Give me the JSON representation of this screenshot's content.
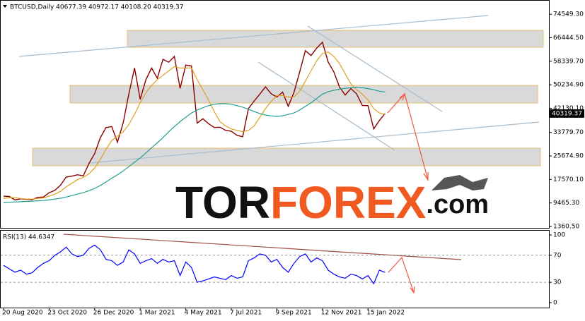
{
  "header": "BTCUSD,Daily  40677.39 40972.17 40108.20 40319.37",
  "watermark": [
    "TOR",
    "FOREX",
    ".com"
  ],
  "chart_data": [
    {
      "type": "line",
      "ylim": [
        869,
        79215
      ],
      "yticks": [
        {
          "value": 74549.3,
          "label": "74549.30"
        },
        {
          "value": 66444.5,
          "label": "66444.50"
        },
        {
          "value": 58339.7,
          "label": "58339.70"
        },
        {
          "value": 50234.9,
          "label": "50234.90"
        },
        {
          "value": 42130.1,
          "label": "42130.10"
        },
        {
          "value": 33779.7,
          "label": "33779.70"
        },
        {
          "value": 25674.9,
          "label": "25674.90"
        },
        {
          "value": 17570.1,
          "label": "17570.10"
        },
        {
          "value": 9465.3,
          "label": "9465.30"
        },
        {
          "value": 1360.5,
          "label": "1360.50"
        }
      ],
      "price_label": "40319.37",
      "series": [
        {
          "color": "#8b0000",
          "values": [
            11800,
            11700,
            10500,
            10900,
            10700,
            10600,
            11400,
            11500,
            13000,
            13800,
            15600,
            18400,
            18700,
            19200,
            18800,
            23100,
            26500,
            32000,
            35500,
            35800,
            30400,
            37000,
            47000,
            56000,
            45200,
            52000,
            56000,
            52500,
            59000,
            58000,
            60000,
            49000,
            57000,
            56700,
            37000,
            38500,
            36800,
            35500,
            35600,
            34500,
            34200,
            32800,
            32300,
            42000,
            44600,
            47000,
            49500,
            47100,
            46000,
            47700,
            42800,
            47600,
            54600,
            62000,
            60300,
            62900,
            64900,
            58100,
            54700,
            49400,
            46700,
            48900,
            47100,
            43100,
            43000,
            35000,
            37900,
            40319.37
          ]
        },
        {
          "color": "#e0a020",
          "values": [
            11000,
            11300,
            11300,
            11000,
            10800,
            10800,
            11000,
            11200,
            11800,
            12500,
            13500,
            15000,
            16300,
            17500,
            18300,
            19500,
            21500,
            24500,
            28000,
            31000,
            32500,
            34000,
            36500,
            40000,
            44000,
            47500,
            50000,
            52000,
            53500,
            55000,
            56500,
            56000,
            56000,
            56000,
            52000,
            48500,
            45000,
            41000,
            37500,
            36000,
            35000,
            34500,
            34000,
            34500,
            36000,
            39000,
            42000,
            44500,
            46500,
            46500,
            46000,
            46000,
            48000,
            51500,
            55000,
            58500,
            61000,
            61500,
            60000,
            57500,
            54000,
            50500,
            48500,
            47000,
            45000,
            42000,
            40500,
            40000
          ]
        },
        {
          "color": "#20a090",
          "values": [
            9600,
            9700,
            9800,
            9900,
            10000,
            10100,
            10200,
            10300,
            10500,
            10800,
            11100,
            11500,
            12000,
            12500,
            13000,
            13700,
            14500,
            15500,
            16700,
            18000,
            19200,
            20500,
            22000,
            23500,
            25000,
            26700,
            28500,
            30200,
            32000,
            34000,
            35800,
            37500,
            39000,
            40500,
            41500,
            42300,
            43000,
            43500,
            43700,
            43700,
            43500,
            43000,
            42500,
            41800,
            41000,
            40300,
            39800,
            39500,
            39300,
            39500,
            40000,
            40500,
            41500,
            42800,
            44000,
            45500,
            47000,
            47800,
            48300,
            48700,
            49000,
            49200,
            49300,
            49200,
            48900,
            48500,
            48000,
            47700
          ]
        }
      ]
    },
    {
      "type": "line",
      "title": "RSI(13) 44.6347",
      "categories": [
        "20 Aug 2020",
        null,
        null,
        null,
        null,
        null,
        null,
        null,
        "23 Oct 2020",
        null,
        null,
        null,
        null,
        null,
        null,
        null,
        "26 Dec 2020",
        null,
        null,
        null,
        null,
        null,
        null,
        null,
        "1 Mar 2021",
        null,
        null,
        null,
        null,
        null,
        null,
        null,
        "4 May 2021",
        null,
        null,
        null,
        null,
        null,
        null,
        null,
        "7 Jul 2021",
        null,
        null,
        null,
        null,
        null,
        null,
        null,
        "9 Sep 2021",
        null,
        null,
        null,
        null,
        null,
        null,
        null,
        "12 Nov 2021",
        null,
        null,
        null,
        null,
        null,
        null,
        null,
        "15 Jan 2022",
        null,
        null,
        null
      ],
      "ylim": [
        -7.4,
        106.3
      ],
      "yticks": [
        100,
        70,
        30,
        0
      ],
      "series": [
        {
          "color": "#0000ff",
          "values": [
            55,
            50,
            45,
            48,
            42,
            44,
            52,
            58,
            62,
            70,
            75,
            82,
            72,
            68,
            70,
            80,
            85,
            78,
            64,
            62,
            55,
            60,
            78,
            72,
            58,
            62,
            65,
            58,
            64,
            60,
            62,
            40,
            60,
            52,
            30,
            32,
            35,
            38,
            36,
            34,
            40,
            36,
            38,
            62,
            66,
            72,
            70,
            60,
            64,
            52,
            45,
            58,
            68,
            72,
            60,
            66,
            62,
            48,
            42,
            38,
            36,
            42,
            40,
            35,
            40,
            28,
            48,
            44.6347
          ]
        }
      ]
    }
  ]
}
